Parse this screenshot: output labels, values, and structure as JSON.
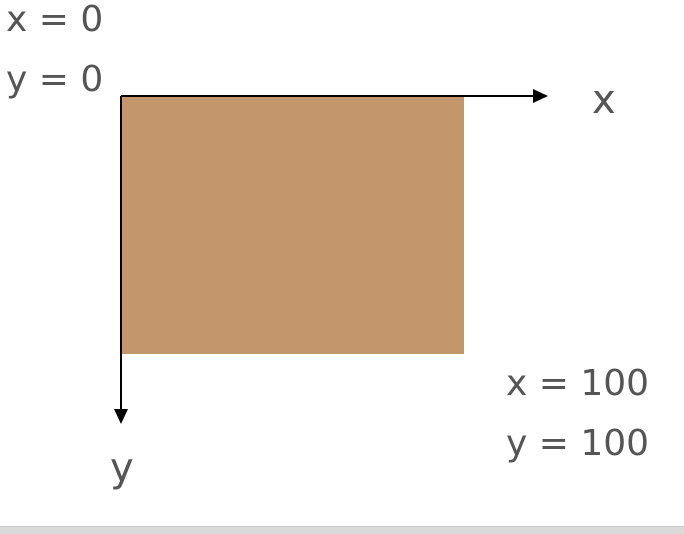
{
  "labels": {
    "origin_x": "x = 0",
    "origin_y": "y = 0",
    "end_x": "x = 100",
    "end_y": "y = 100",
    "x_axis": "x",
    "y_axis": "y"
  },
  "rect": {
    "fill": "#c4966b",
    "x_from": 0,
    "y_from": 0,
    "x_to": 100,
    "y_to": 100
  },
  "axis_color": "#000000",
  "text_color": "#555555"
}
